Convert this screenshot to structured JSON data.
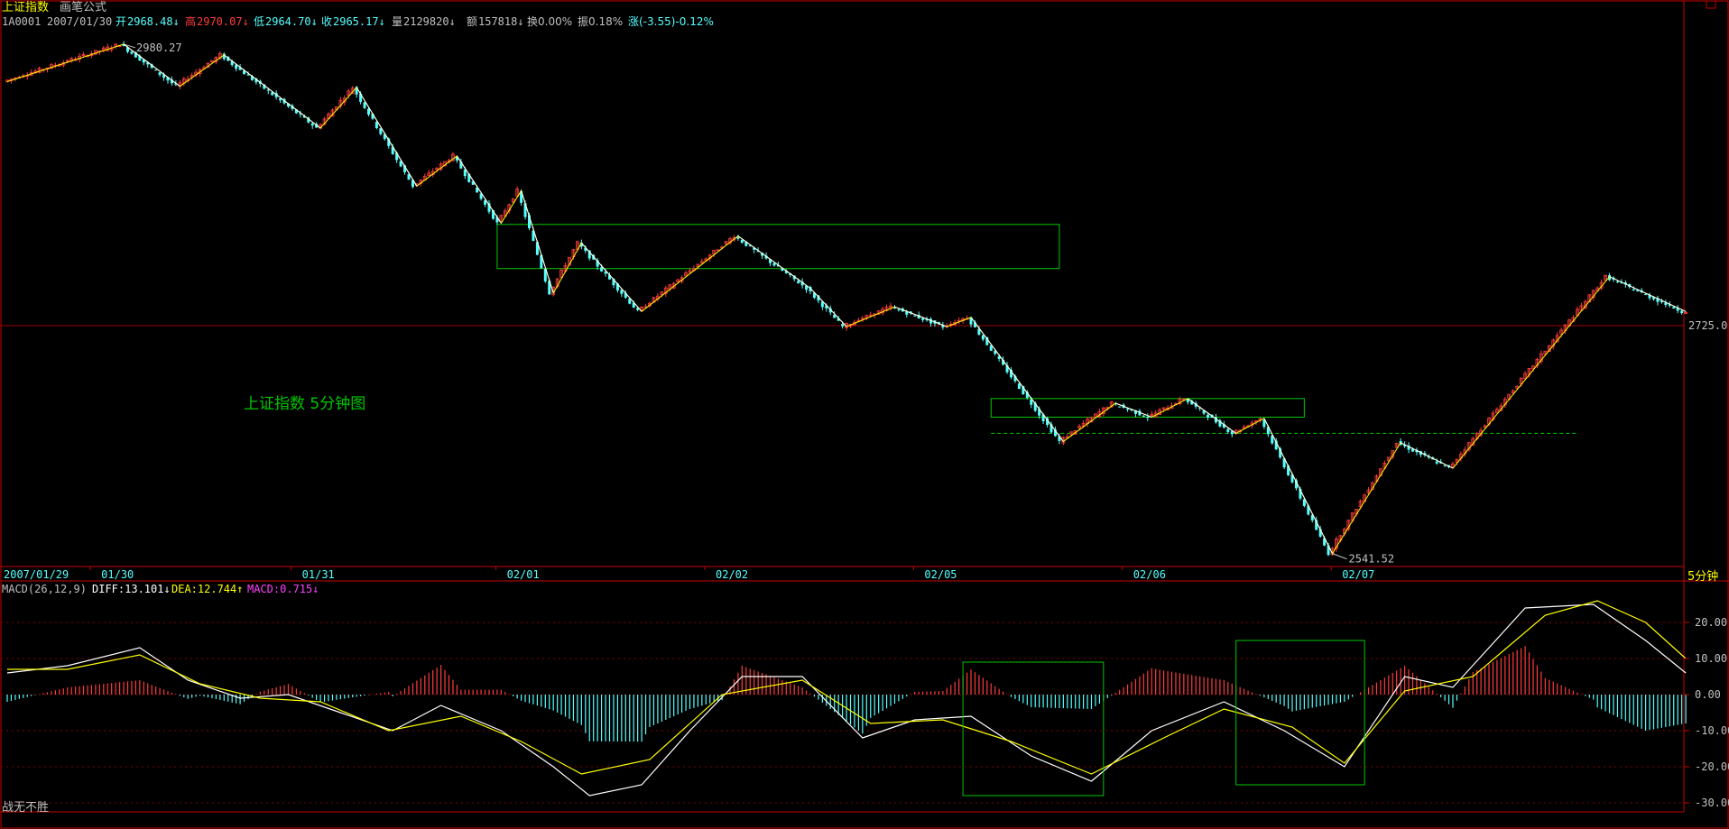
{
  "header": {
    "title": "上证指数",
    "formula": "画笔公式",
    "code": "1A0001",
    "date": "2007/01/30",
    "open_label": "开",
    "open": "2968.48↓",
    "high_label": "高",
    "high": "2970.07↓",
    "low_label": "低",
    "low": "2964.70↓",
    "close_label": "收",
    "close": "2965.17↓",
    "vol_label": "量",
    "vol": "2129820↓",
    "amount_label": "额",
    "amount": "157818↓",
    "turnover": "换0.00%",
    "amplitude": "振0.18%",
    "change": "涨(-3.55)-0.12%"
  },
  "annotation": "上证指数 5分钟图",
  "price_labels": {
    "high_mark": "2980.27",
    "low_mark": "2541.52",
    "current": "2725.0"
  },
  "period": "5分钟",
  "x_axis": [
    "2007/01/29",
    "01/30",
    "01/31",
    "02/01",
    "02/02",
    "02/05",
    "02/06",
    "02/07"
  ],
  "macd_header": {
    "params": "MACD(26,12,9)",
    "diff": "DIFF:13.101↓",
    "dea": "DEA:12.744↑",
    "macd": "MACD:0.715↓"
  },
  "macd_axis": [
    "20.00",
    "10.00",
    "0.00",
    "-10.00",
    "-20.00",
    "-30.00"
  ],
  "footer": "战无不胜",
  "colors": {
    "up": "#ff3c3c",
    "down": "#54ffff",
    "zigzag": "#ffff00",
    "box": "#00c800",
    "border": "#c80000",
    "text_gray": "#c0c0c0"
  },
  "chart_data": {
    "type": "candlestick",
    "zigzag_price": [
      {
        "bar": 0,
        "price": 2948
      },
      {
        "bar": 29,
        "price": 2980.27
      },
      {
        "bar": 43,
        "price": 2944
      },
      {
        "bar": 54,
        "price": 2971
      },
      {
        "bar": 78,
        "price": 2908
      },
      {
        "bar": 87,
        "price": 2943
      },
      {
        "bar": 102,
        "price": 2858
      },
      {
        "bar": 112,
        "price": 2884
      },
      {
        "bar": 123,
        "price": 2826
      },
      {
        "bar": 128,
        "price": 2854
      },
      {
        "bar": 136,
        "price": 2766
      },
      {
        "bar": 143,
        "price": 2809
      },
      {
        "bar": 158,
        "price": 2750
      },
      {
        "bar": 182,
        "price": 2815
      },
      {
        "bar": 200,
        "price": 2770
      },
      {
        "bar": 209,
        "price": 2737
      },
      {
        "bar": 221,
        "price": 2754
      },
      {
        "bar": 234,
        "price": 2737
      },
      {
        "bar": 240,
        "price": 2745
      },
      {
        "bar": 263,
        "price": 2638
      },
      {
        "bar": 276,
        "price": 2671
      },
      {
        "bar": 285,
        "price": 2659
      },
      {
        "bar": 294,
        "price": 2675
      },
      {
        "bar": 306,
        "price": 2645
      },
      {
        "bar": 313,
        "price": 2658
      },
      {
        "bar": 330,
        "price": 2541.52
      },
      {
        "bar": 347,
        "price": 2637
      },
      {
        "bar": 360,
        "price": 2615
      },
      {
        "bar": 399,
        "price": 2780
      },
      {
        "bar": 418,
        "price": 2750
      }
    ],
    "boxes": [
      {
        "bar_from": 122,
        "bar_to": 262,
        "price_from": 2787,
        "price_to": 2825
      },
      {
        "bar_from": 245,
        "bar_to": 323,
        "price_from": 2659,
        "price_to": 2675
      }
    ],
    "support_line": {
      "bar_from": 245,
      "bar_to": 391,
      "price": 2645
    },
    "price_ylim": [
      2535,
      2995
    ],
    "macd": {
      "ylim": [
        -32,
        30
      ],
      "diff": [
        {
          "bar": 0,
          "value": 6
        },
        {
          "bar": 15,
          "value": 8
        },
        {
          "bar": 33,
          "value": 13
        },
        {
          "bar": 45,
          "value": 4
        },
        {
          "bar": 58,
          "value": -1
        },
        {
          "bar": 70,
          "value": 0
        },
        {
          "bar": 83,
          "value": -5
        },
        {
          "bar": 96,
          "value": -10
        },
        {
          "bar": 108,
          "value": -3
        },
        {
          "bar": 123,
          "value": -10
        },
        {
          "bar": 136,
          "value": -20
        },
        {
          "bar": 145,
          "value": -28
        },
        {
          "bar": 158,
          "value": -25
        },
        {
          "bar": 170,
          "value": -10
        },
        {
          "bar": 183,
          "value": 5
        },
        {
          "bar": 198,
          "value": 5
        },
        {
          "bar": 213,
          "value": -12
        },
        {
          "bar": 226,
          "value": -7
        },
        {
          "bar": 240,
          "value": -6
        },
        {
          "bar": 255,
          "value": -17
        },
        {
          "bar": 270,
          "value": -24
        },
        {
          "bar": 285,
          "value": -10
        },
        {
          "bar": 303,
          "value": -2
        },
        {
          "bar": 318,
          "value": -10
        },
        {
          "bar": 333,
          "value": -20
        },
        {
          "bar": 348,
          "value": 5
        },
        {
          "bar": 360,
          "value": 2
        },
        {
          "bar": 378,
          "value": 24
        },
        {
          "bar": 395,
          "value": 25
        },
        {
          "bar": 408,
          "value": 15
        },
        {
          "bar": 418,
          "value": 6
        }
      ],
      "dea": [
        {
          "bar": 0,
          "value": 7
        },
        {
          "bar": 15,
          "value": 7
        },
        {
          "bar": 33,
          "value": 11
        },
        {
          "bar": 48,
          "value": 3
        },
        {
          "bar": 63,
          "value": -1
        },
        {
          "bar": 78,
          "value": -2
        },
        {
          "bar": 95,
          "value": -10
        },
        {
          "bar": 113,
          "value": -6
        },
        {
          "bar": 128,
          "value": -13
        },
        {
          "bar": 143,
          "value": -22
        },
        {
          "bar": 160,
          "value": -18
        },
        {
          "bar": 178,
          "value": 0
        },
        {
          "bar": 198,
          "value": 4
        },
        {
          "bar": 215,
          "value": -8
        },
        {
          "bar": 233,
          "value": -7
        },
        {
          "bar": 250,
          "value": -13
        },
        {
          "bar": 270,
          "value": -22
        },
        {
          "bar": 288,
          "value": -12
        },
        {
          "bar": 303,
          "value": -4
        },
        {
          "bar": 320,
          "value": -9
        },
        {
          "bar": 333,
          "value": -19
        },
        {
          "bar": 348,
          "value": 1
        },
        {
          "bar": 365,
          "value": 5
        },
        {
          "bar": 383,
          "value": 22
        },
        {
          "bar": 396,
          "value": 26
        },
        {
          "bar": 408,
          "value": 20
        },
        {
          "bar": 418,
          "value": 10
        }
      ],
      "boxes": [
        {
          "bar_from": 238,
          "bar_to": 273,
          "value_from": -28,
          "value_to": 9
        },
        {
          "bar_from": 306,
          "bar_to": 338,
          "value_from": -25,
          "value_to": 15
        }
      ],
      "grid_values": [
        20,
        10,
        0,
        -10,
        -20,
        -30
      ]
    }
  }
}
